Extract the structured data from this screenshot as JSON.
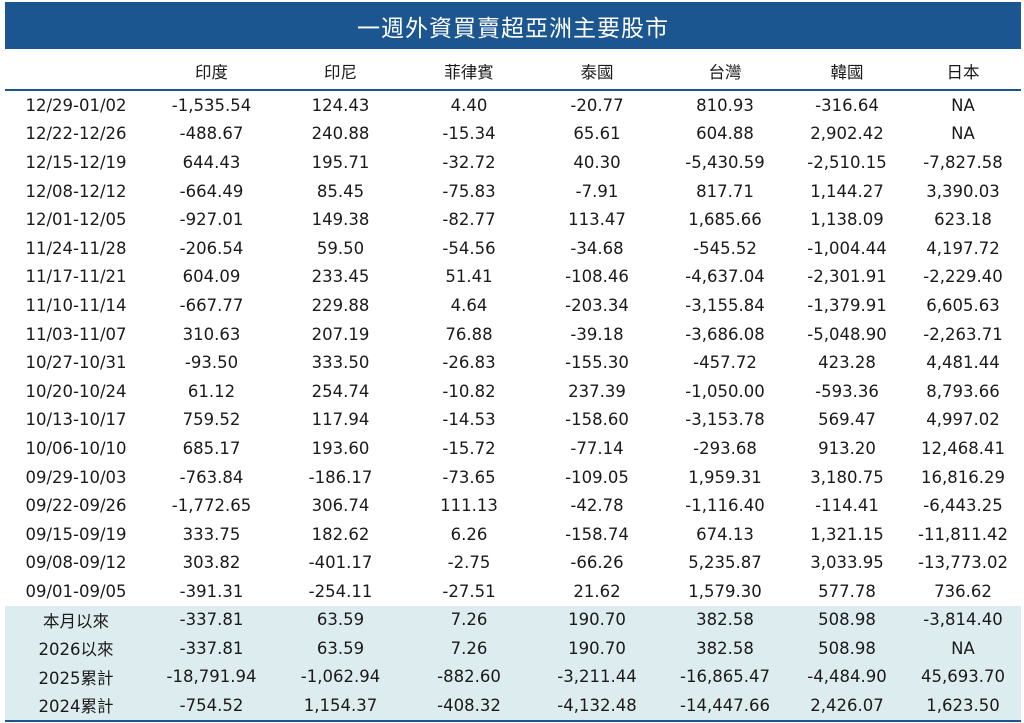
{
  "title": "一週外資買賣超亞洲主要股市",
  "columns": [
    "",
    "印度",
    "印尼",
    "菲律賓",
    "泰國",
    "台灣",
    "韓國",
    "日本"
  ],
  "rows": [
    {
      "label": "12/29-01/02",
      "values": [
        "-1,535.54",
        "124.43",
        "4.40",
        "-20.77",
        "810.93",
        "-316.64",
        "NA"
      ]
    },
    {
      "label": "12/22-12/26",
      "values": [
        "-488.67",
        "240.88",
        "-15.34",
        "65.61",
        "604.88",
        "2,902.42",
        "NA"
      ]
    },
    {
      "label": "12/15-12/19",
      "values": [
        "644.43",
        "195.71",
        "-32.72",
        "40.30",
        "-5,430.59",
        "-2,510.15",
        "-7,827.58"
      ]
    },
    {
      "label": "12/08-12/12",
      "values": [
        "-664.49",
        "85.45",
        "-75.83",
        "-7.91",
        "817.71",
        "1,144.27",
        "3,390.03"
      ]
    },
    {
      "label": "12/01-12/05",
      "values": [
        "-927.01",
        "149.38",
        "-82.77",
        "113.47",
        "1,685.66",
        "1,138.09",
        "623.18"
      ]
    },
    {
      "label": "11/24-11/28",
      "values": [
        "-206.54",
        "59.50",
        "-54.56",
        "-34.68",
        "-545.52",
        "-1,004.44",
        "4,197.72"
      ]
    },
    {
      "label": "11/17-11/21",
      "values": [
        "604.09",
        "233.45",
        "51.41",
        "-108.46",
        "-4,637.04",
        "-2,301.91",
        "-2,229.40"
      ]
    },
    {
      "label": "11/10-11/14",
      "values": [
        "-667.77",
        "229.88",
        "4.64",
        "-203.34",
        "-3,155.84",
        "-1,379.91",
        "6,605.63"
      ]
    },
    {
      "label": "11/03-11/07",
      "values": [
        "310.63",
        "207.19",
        "76.88",
        "-39.18",
        "-3,686.08",
        "-5,048.90",
        "-2,263.71"
      ]
    },
    {
      "label": "10/27-10/31",
      "values": [
        "-93.50",
        "333.50",
        "-26.83",
        "-155.30",
        "-457.72",
        "423.28",
        "4,481.44"
      ]
    },
    {
      "label": "10/20-10/24",
      "values": [
        "61.12",
        "254.74",
        "-10.82",
        "237.39",
        "-1,050.00",
        "-593.36",
        "8,793.66"
      ]
    },
    {
      "label": "10/13-10/17",
      "values": [
        "759.52",
        "117.94",
        "-14.53",
        "-158.60",
        "-3,153.78",
        "569.47",
        "4,997.02"
      ]
    },
    {
      "label": "10/06-10/10",
      "values": [
        "685.17",
        "193.60",
        "-15.72",
        "-77.14",
        "-293.68",
        "913.20",
        "12,468.41"
      ]
    },
    {
      "label": "09/29-10/03",
      "values": [
        "-763.84",
        "-186.17",
        "-73.65",
        "-109.05",
        "1,959.31",
        "3,180.75",
        "16,816.29"
      ]
    },
    {
      "label": "09/22-09/26",
      "values": [
        "-1,772.65",
        "306.74",
        "111.13",
        "-42.78",
        "-1,116.40",
        "-114.41",
        "-6,443.25"
      ]
    },
    {
      "label": "09/15-09/19",
      "values": [
        "333.75",
        "182.62",
        "6.26",
        "-158.74",
        "674.13",
        "1,321.15",
        "-11,811.42"
      ]
    },
    {
      "label": "09/08-09/12",
      "values": [
        "303.82",
        "-401.17",
        "-2.75",
        "-66.26",
        "5,235.87",
        "3,033.95",
        "-13,773.02"
      ]
    },
    {
      "label": "09/01-09/05",
      "values": [
        "-391.31",
        "-254.11",
        "-27.51",
        "21.62",
        "1,579.30",
        "577.78",
        "736.62"
      ]
    }
  ],
  "summary_rows": [
    {
      "label": "本月以來",
      "values": [
        "-337.81",
        "63.59",
        "7.26",
        "190.70",
        "382.58",
        "508.98",
        "-3,814.40"
      ]
    },
    {
      "label": "2026以來",
      "values": [
        "-337.81",
        "63.59",
        "7.26",
        "190.70",
        "382.58",
        "508.98",
        "NA"
      ]
    },
    {
      "label": "2025累計",
      "values": [
        "-18,791.94",
        "-1,062.94",
        "-882.60",
        "-3,211.44",
        "-16,865.47",
        "-4,484.90",
        "45,693.70"
      ]
    },
    {
      "label": "2024累計",
      "values": [
        "-754.52",
        "1,154.37",
        "-408.32",
        "-4,132.48",
        "-14,447.66",
        "2,426.07",
        "1,623.50"
      ]
    }
  ],
  "colors": {
    "header_bg": "#1b5690",
    "summary_bg": "#ddecef"
  }
}
